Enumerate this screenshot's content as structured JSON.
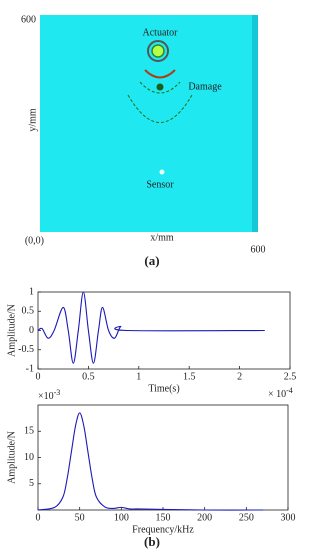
{
  "diagram": {
    "axis_top": "600",
    "y_label": "y/mm",
    "origin": "(0,0)",
    "x_label": "x/mm",
    "axis_right": "600",
    "actuator": "Actuator",
    "damage": "Damage",
    "sensor": "Sensor"
  },
  "captions": {
    "a": "(a)",
    "b": "(b)"
  },
  "chart_data": [
    {
      "type": "line",
      "ylabel": "Amplitude/N",
      "xlabel": "Time(s)",
      "x_multiplier": {
        "base": "× 10",
        "exponent": "-4"
      },
      "x": [
        0,
        0.04,
        0.1,
        0.16,
        0.25,
        0.3,
        0.35,
        0.4,
        0.45,
        0.5,
        0.55,
        0.6,
        0.64,
        0.7,
        0.76,
        0.82,
        0.88,
        2.25
      ],
      "series": [
        {
          "color": "#1a1ab8",
          "values": [
            0,
            0.05,
            -0.2,
            0,
            0.6,
            0,
            -0.85,
            0,
            1,
            0,
            -0.85,
            0,
            0.6,
            0,
            -0.2,
            0.1,
            0,
            0
          ]
        }
      ],
      "xlim": [
        0,
        2.5
      ],
      "xticks": [
        0,
        0.5,
        1,
        1.5,
        2,
        2.5
      ],
      "ylim": [
        -1,
        1
      ],
      "yticks": [
        -1,
        -0.5,
        0,
        0.5,
        1
      ]
    },
    {
      "type": "line",
      "ylabel": "Amplitude/N",
      "xlabel": "Frequency/kHz",
      "y_multiplier": {
        "base": "×10",
        "exponent": "-3"
      },
      "x": [
        0,
        20,
        30,
        35,
        40,
        45,
        50,
        55,
        60,
        65,
        70,
        80,
        90,
        100,
        110,
        120,
        150,
        200,
        270
      ],
      "series": [
        {
          "color": "#1a1ab8",
          "values": [
            0,
            0.5,
            2.5,
            6,
            11,
            16,
            18.5,
            16,
            11,
            6,
            2.5,
            0.6,
            0.3,
            0.5,
            0.2,
            0.2,
            0.1,
            0,
            0
          ]
        }
      ],
      "xlim": [
        0,
        300
      ],
      "xticks": [
        0,
        50,
        100,
        150,
        200,
        250,
        300
      ],
      "ylim": [
        0,
        20
      ],
      "yticks": [
        5,
        10,
        15
      ]
    }
  ]
}
